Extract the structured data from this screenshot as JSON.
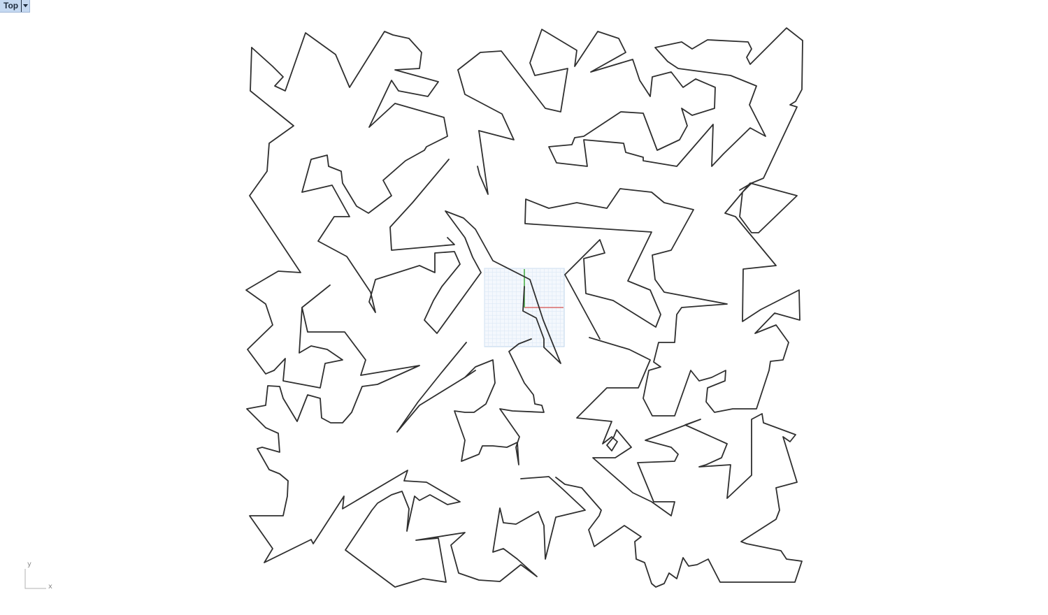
{
  "viewport": {
    "name": "Top",
    "menu_icon": "chevron-down-icon"
  },
  "axis_gizmo": {
    "x_label": "x",
    "y_label": "y"
  },
  "colors": {
    "tab_background": "#c5d9f1",
    "curve": "#2f2f2f",
    "grid": "#bcd3ea",
    "x_axis": "#d96a6a",
    "y_axis": "#47b047"
  }
}
